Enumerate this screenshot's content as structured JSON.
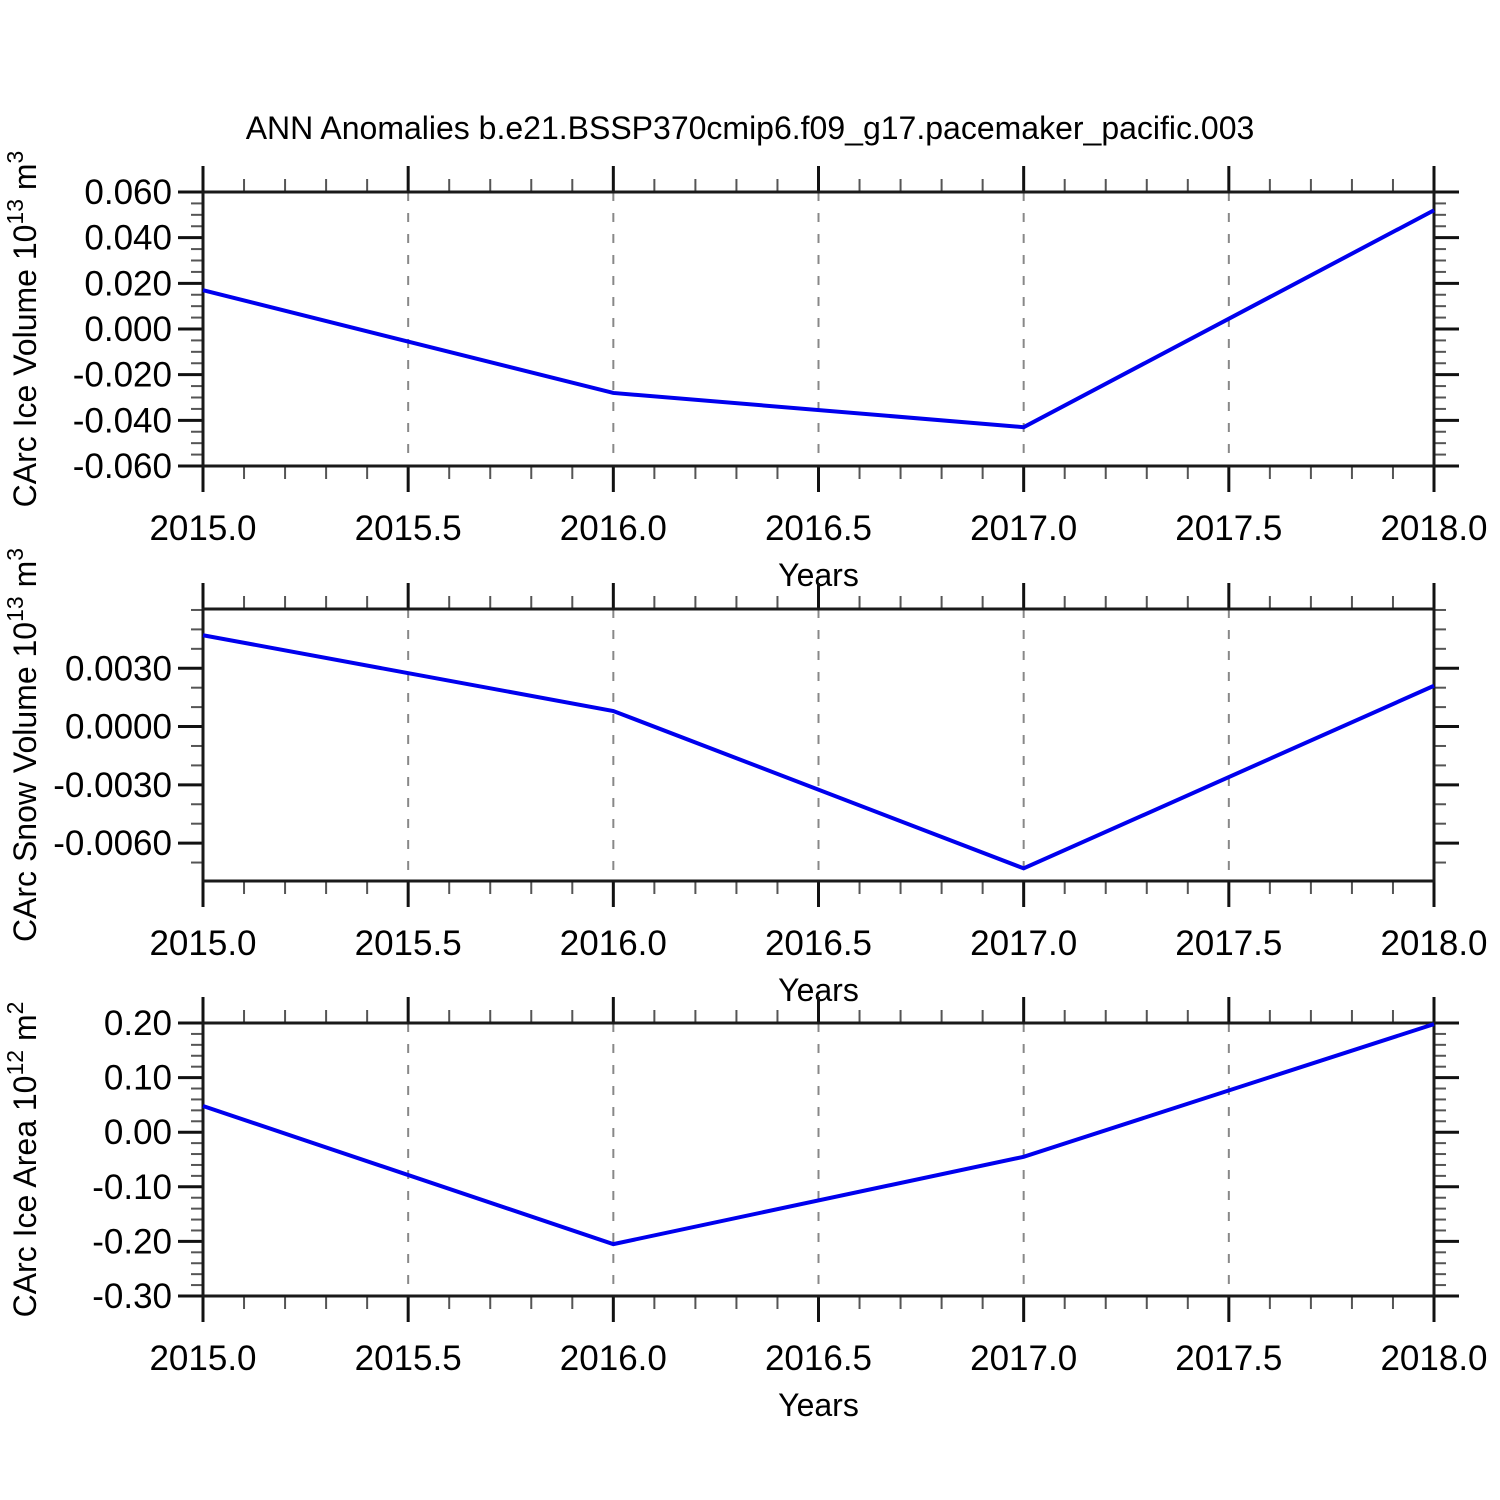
{
  "figure": {
    "title": "ANN Anomalies b.e21.BSSP370cmip6.f09_g17.pacemaker_pacific.003",
    "background_color": "#ffffff",
    "line_color": "#0000ee",
    "grid_color": "#888888",
    "axis_color": "#1a1a1a",
    "text_color": "#000000"
  },
  "chart_data": [
    {
      "type": "line",
      "name": "carc-ice-volume",
      "ylabel": "CArc Ice Volume 10^13 m^3",
      "ylabel_parts": [
        {
          "text": "CArc Ice Volume 10"
        },
        {
          "text": "13",
          "sup": true
        },
        {
          "text": " m"
        },
        {
          "text": "3",
          "sup": true
        }
      ],
      "xlabel": "Years",
      "x": [
        2015.0,
        2016.0,
        2017.0,
        2018.0
      ],
      "y": [
        0.017,
        -0.028,
        -0.043,
        0.052
      ],
      "xlim": [
        2015.0,
        2018.0
      ],
      "ylim": [
        -0.06,
        0.06
      ],
      "xticks": [
        2015.0,
        2015.5,
        2016.0,
        2016.5,
        2017.0,
        2017.5,
        2018.0
      ],
      "xtick_labels": [
        "2015.0",
        "2015.5",
        "2016.0",
        "2016.5",
        "2017.0",
        "2017.5",
        "2018.0"
      ],
      "x_minor_step": 0.1,
      "yticks": [
        0.06,
        0.04,
        0.02,
        0.0,
        -0.02,
        -0.04,
        -0.06
      ],
      "ytick_labels": [
        "0.060",
        "0.040",
        "0.020",
        "0.000",
        "-0.020",
        "-0.040",
        "-0.060"
      ],
      "y_minor_step": 0.005,
      "gridlines_x": [
        2015.5,
        2016.0,
        2016.5,
        2017.0,
        2017.5
      ],
      "grid_style": "vertical-dashed"
    },
    {
      "type": "line",
      "name": "carc-snow-volume",
      "ylabel": "CArc Snow Volume 10^13 m^3",
      "ylabel_parts": [
        {
          "text": "CArc Snow Volume 10"
        },
        {
          "text": "13",
          "sup": true
        },
        {
          "text": " m"
        },
        {
          "text": "3",
          "sup": true
        }
      ],
      "xlabel": "Years",
      "x": [
        2015.0,
        2016.0,
        2017.0,
        2018.0
      ],
      "y": [
        0.0047,
        0.0008,
        -0.0073,
        0.0021
      ],
      "xlim": [
        2015.0,
        2018.0
      ],
      "ylim": [
        -0.00795,
        0.00605
      ],
      "xticks": [
        2015.0,
        2015.5,
        2016.0,
        2016.5,
        2017.0,
        2017.5,
        2018.0
      ],
      "xtick_labels": [
        "2015.0",
        "2015.5",
        "2016.0",
        "2016.5",
        "2017.0",
        "2017.5",
        "2018.0"
      ],
      "x_minor_step": 0.1,
      "yticks": [
        0.003,
        0.0,
        -0.003,
        -0.006
      ],
      "ytick_labels": [
        "0.0030",
        "0.0000",
        "-0.0030",
        "-0.0060"
      ],
      "y_minor_step": 0.001,
      "gridlines_x": [
        2015.5,
        2016.0,
        2016.5,
        2017.0,
        2017.5
      ],
      "grid_style": "vertical-dashed"
    },
    {
      "type": "line",
      "name": "carc-ice-area",
      "ylabel": "CArc Ice Area 10^12 m^2",
      "ylabel_parts": [
        {
          "text": "CArc Ice Area 10"
        },
        {
          "text": "12",
          "sup": true
        },
        {
          "text": " m"
        },
        {
          "text": "2",
          "sup": true
        }
      ],
      "xlabel": "Years",
      "x": [
        2015.0,
        2016.0,
        2017.0,
        2018.0
      ],
      "y": [
        0.048,
        -0.205,
        -0.045,
        0.198
      ],
      "xlim": [
        2015.0,
        2018.0
      ],
      "ylim": [
        -0.3,
        0.2
      ],
      "xticks": [
        2015.0,
        2015.5,
        2016.0,
        2016.5,
        2017.0,
        2017.5,
        2018.0
      ],
      "xtick_labels": [
        "2015.0",
        "2015.5",
        "2016.0",
        "2016.5",
        "2017.0",
        "2017.5",
        "2018.0"
      ],
      "x_minor_step": 0.1,
      "yticks": [
        0.2,
        0.1,
        0.0,
        -0.1,
        -0.2,
        -0.3
      ],
      "ytick_labels": [
        "0.20",
        "0.10",
        "0.00",
        "-0.10",
        "-0.20",
        "-0.30"
      ],
      "y_minor_step": 0.02,
      "gridlines_x": [
        2015.5,
        2016.0,
        2016.5,
        2017.0,
        2017.5
      ],
      "grid_style": "vertical-dashed"
    }
  ]
}
